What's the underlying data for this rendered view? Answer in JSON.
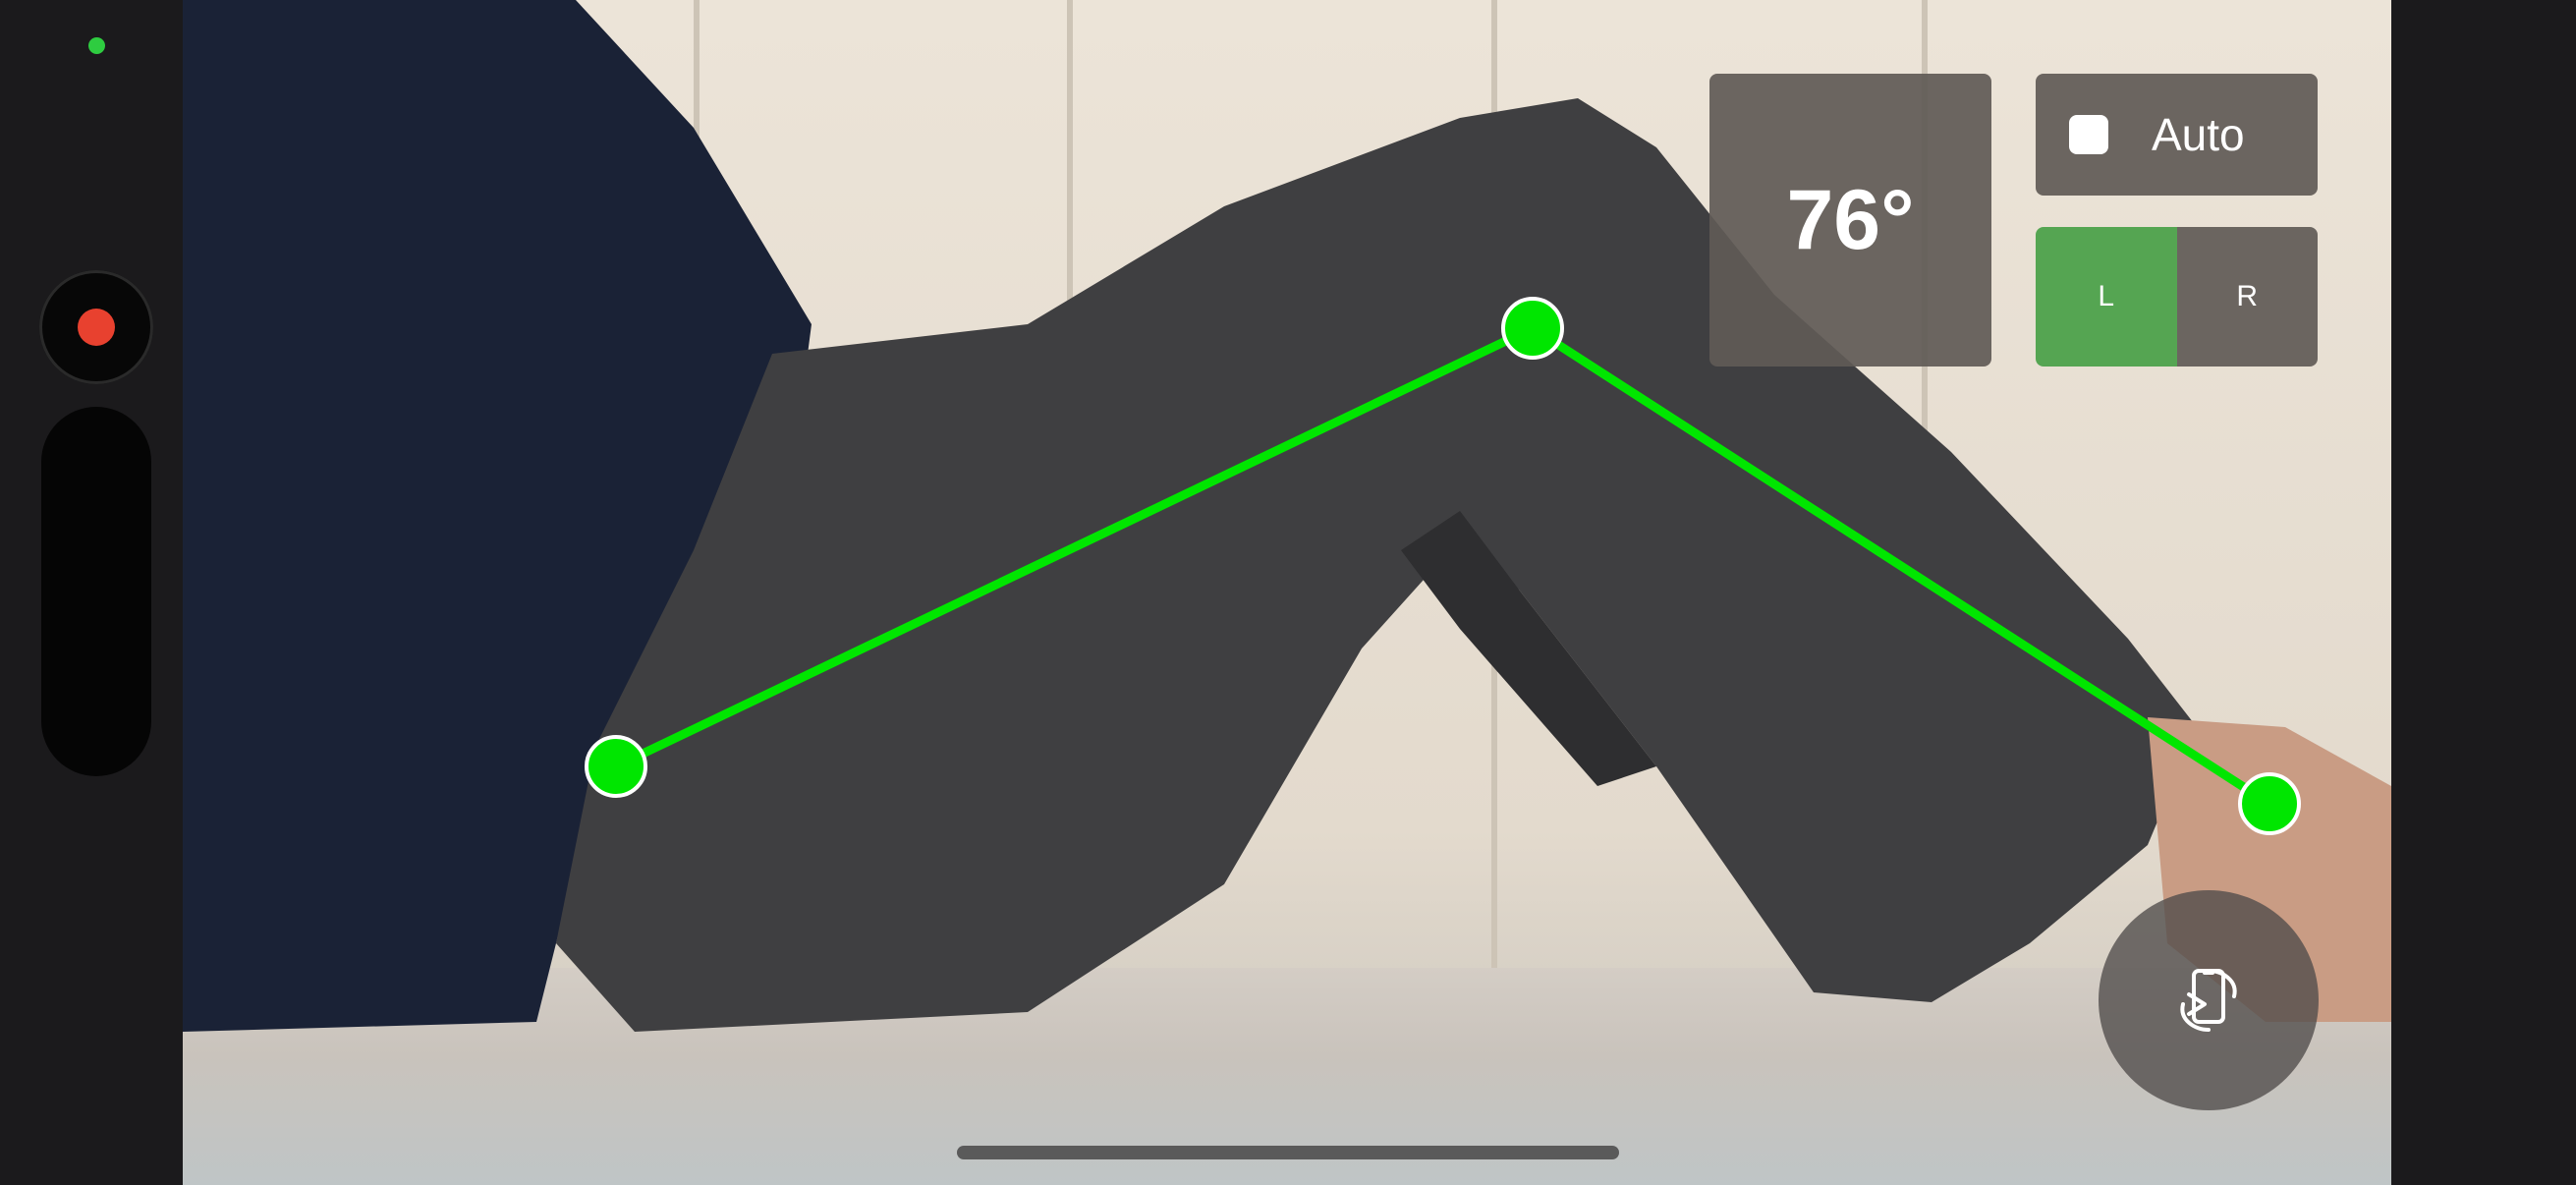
{
  "measurement": {
    "angle_label": "76°",
    "joints": [
      {
        "name": "hip",
        "color": "#00e600"
      },
      {
        "name": "knee",
        "color": "#00e600"
      },
      {
        "name": "ankle",
        "color": "#00e600"
      }
    ],
    "line_color": "#00e600"
  },
  "controls": {
    "auto_label": "Auto",
    "auto_checked": false,
    "side_left_label": "L",
    "side_right_label": "R",
    "side_selected": "L",
    "active_color": "#55a552"
  },
  "camera": {
    "record_color": "#e8412f",
    "status_color": "#2ecc40"
  },
  "icons": {
    "rotate": "rotate-camera-icon"
  }
}
